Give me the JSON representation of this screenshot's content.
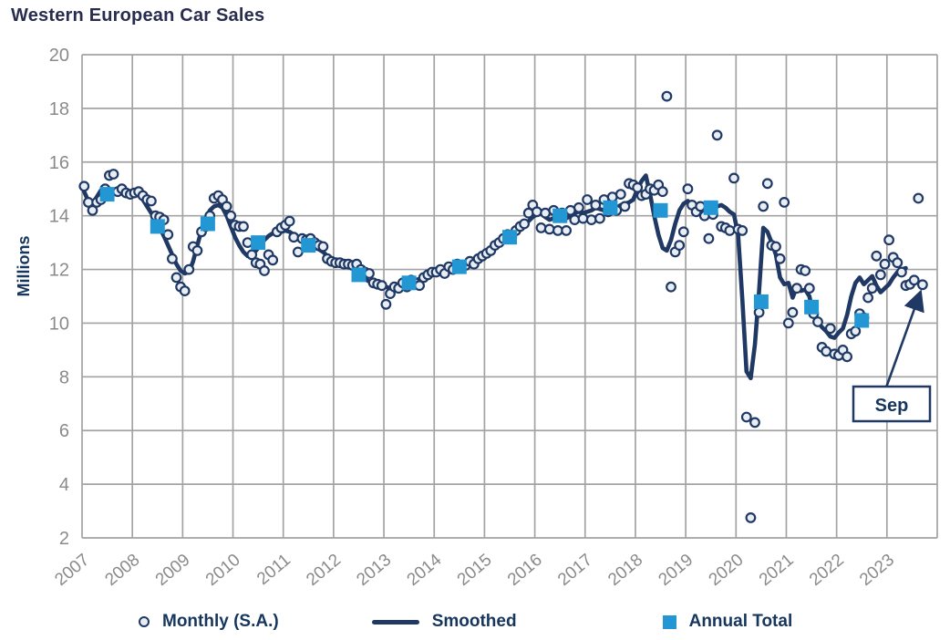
{
  "title": "Western European Car Sales",
  "legend": {
    "monthly_label": "Monthly (S.A.)",
    "smoothed_label": "Smoothed",
    "annual_label": "Annual Total"
  },
  "annotation": {
    "label": "Sep",
    "target_x": 2023.708,
    "target_y": 11.43
  },
  "colors": {
    "navy": "#1F3864",
    "title_text": "#282D4F",
    "legend_text": "#17365D",
    "square_blue": "#2397D4",
    "dot_fill": "#E9EDF4",
    "grid": "#A3A3A3",
    "tick_text": "#8A8A8A"
  },
  "chart_data": {
    "type": "combo",
    "title": "Western European Car Sales",
    "ylabel": "Millions",
    "ylim": [
      2,
      20
    ],
    "xlim": [
      2007,
      2024
    ],
    "y_ticks": [
      2,
      4,
      6,
      8,
      10,
      12,
      14,
      16,
      18,
      20
    ],
    "x_tick_labels": [
      "2007",
      "2008",
      "2009",
      "2010",
      "2011",
      "2012",
      "2013",
      "2014",
      "2015",
      "2016",
      "2017",
      "2018",
      "2019",
      "2020",
      "2021",
      "2022",
      "2023"
    ],
    "grid": true,
    "legend_position": "bottom",
    "series": [
      {
        "name": "Monthly (S.A.)",
        "type": "scatter",
        "start": "2007-01",
        "values": [
          15.1,
          14.5,
          14.2,
          14.5,
          14.6,
          15.0,
          15.5,
          15.55,
          14.9,
          15.0,
          14.85,
          14.8,
          14.85,
          14.9,
          14.75,
          14.6,
          14.55,
          14.0,
          13.95,
          13.85,
          13.3,
          12.4,
          11.7,
          11.35,
          11.2,
          12.0,
          12.85,
          12.7,
          13.4,
          13.6,
          14.0,
          14.65,
          14.75,
          14.6,
          14.35,
          14.0,
          13.65,
          13.6,
          13.6,
          13.0,
          12.55,
          12.25,
          12.2,
          11.95,
          12.55,
          12.35,
          13.4,
          13.55,
          13.65,
          13.8,
          13.2,
          12.65,
          13.15,
          13.1,
          13.15,
          13.0,
          12.9,
          12.85,
          12.4,
          12.3,
          12.25,
          12.25,
          12.2,
          12.2,
          12.15,
          12.2,
          12.0,
          11.9,
          11.85,
          11.5,
          11.45,
          11.4,
          10.7,
          11.1,
          11.35,
          11.3,
          11.5,
          11.35,
          11.6,
          11.5,
          11.4,
          11.7,
          11.8,
          11.9,
          11.9,
          12.0,
          11.85,
          12.1,
          12.0,
          12.2,
          12.1,
          12.15,
          12.3,
          12.2,
          12.4,
          12.5,
          12.6,
          12.7,
          12.9,
          13.0,
          13.15,
          13.3,
          13.2,
          13.45,
          13.6,
          13.7,
          14.1,
          14.4,
          14.15,
          13.55,
          14.1,
          13.5,
          14.2,
          13.45,
          14.1,
          13.45,
          14.2,
          13.85,
          14.3,
          13.9,
          14.6,
          13.85,
          14.4,
          13.9,
          14.6,
          14.15,
          14.7,
          14.2,
          14.8,
          14.35,
          15.2,
          15.15,
          15.05,
          14.75,
          14.8,
          15.0,
          14.95,
          15.15,
          14.9,
          18.45,
          11.35,
          12.65,
          12.9,
          13.4,
          15.0,
          14.4,
          14.15,
          14.35,
          14.0,
          13.15,
          14.05,
          17.0,
          13.6,
          13.55,
          13.45,
          15.4,
          13.5,
          13.45,
          6.5,
          2.75,
          6.3,
          10.4,
          14.35,
          15.2,
          12.9,
          12.85,
          12.4,
          14.5,
          10.0,
          10.4,
          11.3,
          12.0,
          11.95,
          11.3,
          10.35,
          10.05,
          9.1,
          8.95,
          9.8,
          8.85,
          8.8,
          9.0,
          8.75,
          9.6,
          9.7,
          10.35,
          10.2,
          10.95,
          11.3,
          12.5,
          11.8,
          12.2,
          13.1,
          12.45,
          12.25,
          11.9,
          11.4,
          11.45,
          11.6,
          14.65,
          11.43
        ]
      },
      {
        "name": "Smoothed",
        "type": "line",
        "start": "2007-01",
        "values": [
          14.9,
          14.55,
          14.45,
          14.7,
          14.95,
          14.95,
          14.85,
          14.8,
          14.85,
          14.9,
          14.85,
          14.85,
          14.9,
          14.8,
          14.6,
          14.35,
          14.1,
          13.85,
          13.55,
          13.25,
          12.9,
          12.55,
          12.2,
          11.95,
          11.85,
          11.9,
          12.3,
          12.9,
          13.45,
          13.9,
          14.2,
          14.35,
          14.4,
          14.3,
          14.0,
          13.6,
          13.2,
          12.9,
          12.65,
          12.5,
          12.55,
          12.7,
          12.9,
          13.1,
          13.25,
          13.35,
          13.4,
          13.4,
          13.45,
          13.4,
          13.3,
          13.15,
          13.05,
          12.95,
          12.85,
          12.8,
          12.75,
          12.65,
          12.5,
          12.4,
          12.35,
          12.3,
          12.25,
          12.15,
          12.05,
          11.9,
          11.8,
          11.65,
          11.55,
          11.5,
          11.45,
          11.4,
          11.35,
          11.3,
          11.28,
          11.3,
          11.35,
          11.45,
          11.55,
          11.6,
          11.65,
          11.72,
          11.8,
          11.85,
          11.9,
          11.95,
          12.0,
          12.05,
          12.1,
          12.15,
          12.2,
          12.25,
          12.3,
          12.4,
          12.5,
          12.6,
          12.65,
          12.75,
          12.85,
          12.95,
          13.1,
          13.2,
          13.3,
          13.4,
          13.5,
          13.65,
          13.8,
          13.95,
          14.05,
          14.1,
          13.95,
          13.85,
          13.9,
          14.0,
          13.95,
          13.9,
          14.0,
          14.1,
          14.15,
          14.1,
          14.15,
          14.2,
          14.3,
          14.25,
          14.2,
          14.3,
          14.35,
          14.3,
          14.4,
          14.45,
          14.5,
          14.6,
          15.0,
          15.3,
          15.5,
          14.8,
          14.0,
          13.3,
          12.8,
          12.7,
          13.1,
          13.7,
          14.2,
          14.45,
          14.55,
          14.4,
          14.3,
          14.35,
          14.45,
          14.35,
          14.25,
          14.35,
          14.4,
          14.3,
          14.15,
          14.05,
          13.3,
          10.9,
          8.2,
          7.95,
          9.2,
          11.2,
          13.55,
          13.4,
          13.0,
          12.55,
          11.7,
          11.45,
          11.5,
          10.95,
          11.35,
          11.2,
          11.25,
          11.0,
          10.25,
          10.05,
          9.85,
          9.7,
          9.5,
          9.45,
          9.65,
          9.8,
          10.3,
          11.0,
          11.5,
          11.7,
          11.45,
          11.6,
          11.75,
          11.4,
          11.15,
          11.3,
          11.45,
          11.7,
          11.9,
          12.0,
          12.05
        ]
      },
      {
        "name": "Annual Total",
        "type": "square_markers",
        "years": [
          2007,
          2008,
          2009,
          2010,
          2011,
          2012,
          2013,
          2014,
          2015,
          2016,
          2017,
          2018,
          2019,
          2020,
          2021,
          2022
        ],
        "values": [
          14.8,
          13.6,
          13.7,
          13.0,
          12.9,
          11.8,
          11.5,
          12.1,
          13.2,
          14.0,
          14.3,
          14.2,
          14.3,
          10.8,
          10.6,
          10.1
        ]
      }
    ]
  }
}
